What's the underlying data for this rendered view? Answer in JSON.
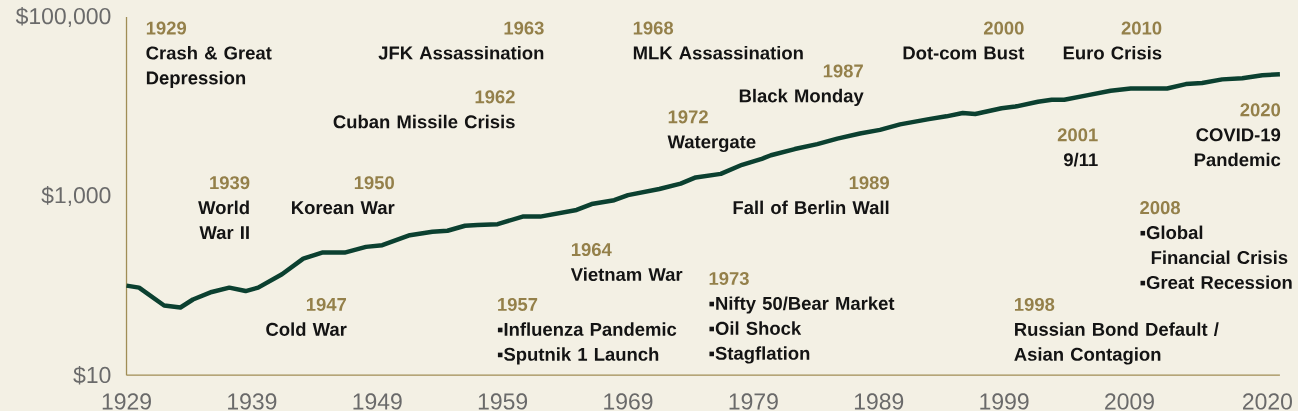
{
  "chart_data": {
    "type": "line",
    "color": "#0b4030",
    "log": true,
    "x": [
      1929,
      1930,
      1932,
      1933.3,
      1934.3,
      1935.8,
      1937.2,
      1938.5,
      1939.5,
      1941.4,
      1943.1,
      1944.6,
      1946.4,
      1948.1,
      1949.4,
      1951.6,
      1953.4,
      1954.6,
      1956,
      1957,
      1958.6,
      1960.6,
      1962,
      1964.9,
      1966.1,
      1967.9,
      1969,
      1971.5,
      1973.2,
      1974.4,
      1976.4,
      1978.1,
      1979.6,
      1980.4,
      1982.3,
      1984.1,
      1985.7,
      1987.5,
      1989.1,
      1990.7,
      1993,
      1994.4,
      1995.7,
      1996.7,
      1998.8,
      1999.9,
      2001.7,
      2002.8,
      2003.8,
      2005.7,
      2007.5,
      2009.1,
      2012,
      2013.5,
      2014.8,
      2016.4,
      2018,
      2019.6,
      2021
    ],
    "values": [
      100,
      95,
      60,
      57,
      70,
      85,
      95,
      87,
      95,
      134,
      200,
      234,
      234,
      271,
      283,
      366,
      400,
      410,
      466,
      474,
      486,
      590,
      590,
      700,
      815,
      900,
      1025,
      1200,
      1380,
      1615,
      1770,
      2235,
      2580,
      2860,
      3350,
      3800,
      4380,
      4990,
      5490,
      6320,
      7230,
      7770,
      8480,
      8250,
      9560,
      9990,
      11300,
      11900,
      11900,
      13400,
      15000,
      15900,
      15900,
      17800,
      18300,
      20100,
      20700,
      22400,
      22900
    ],
    "xlim": [
      1929,
      2021
    ],
    "ylim": [
      10,
      100000
    ],
    "xticks": [
      1929,
      1939,
      1949,
      1959,
      1969,
      1979,
      1989,
      1999,
      2009,
      2020
    ],
    "yticks": [
      {
        "value": 10,
        "label": "$10"
      },
      {
        "value": 1000,
        "label": "$1,000"
      },
      {
        "value": 100000,
        "label": "$100,000"
      }
    ],
    "annotations": [
      "1929",
      "Crash & Great Depression",
      "1963",
      "JFK Assassination",
      "1968",
      "MLK Assassination",
      "2000",
      "Dot-com Bust",
      "2010",
      "Euro Crisis",
      "1987",
      "Black Monday",
      "1962",
      "Cuban Missile Crisis",
      "2020",
      "COVID-19 Pandemic",
      "1972",
      "Watergate",
      "2001",
      "9/11",
      "1939",
      "World War II",
      "1950",
      "Korean War",
      "1989",
      "Fall of Berlin Wall",
      "2008",
      "▪Global Financial Crisis",
      "▪Great Recession",
      "1964",
      "Vietnam War",
      "1973",
      "▪Nifty 50/Bear Market",
      "▪Oil Shock",
      "▪Stagflation",
      "1947",
      "Cold War",
      "1957",
      "▪Influenza Pandemic",
      "▪Sputnik 1 Launch",
      "1998",
      "Russian Bond Default / Asian Contagion"
    ]
  }
}
